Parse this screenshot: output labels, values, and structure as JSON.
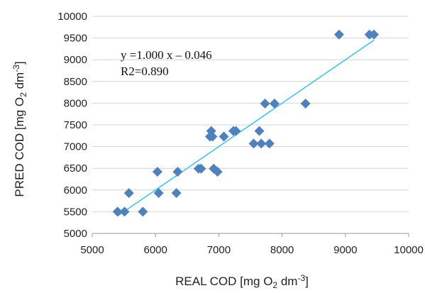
{
  "chart_data": {
    "type": "scatter",
    "xlabel": "REAL COD [mg O2 dm-3]",
    "ylabel": "PRED COD [mg O2 dm-3]",
    "xlabel_parts": {
      "main": "REAL COD [mg O",
      "sub": "2",
      "mid": " dm",
      "sup": "-3",
      "end": "]"
    },
    "ylabel_parts": {
      "main": "PRED COD [mg O",
      "sub": "2",
      "mid": " dm",
      "sup": "-3",
      "end": "]"
    },
    "xlim": [
      5000,
      10000
    ],
    "ylim": [
      5000,
      10000
    ],
    "x_ticks": [
      5000,
      6000,
      7000,
      8000,
      9000,
      10000
    ],
    "y_ticks": [
      5000,
      5500,
      6000,
      6500,
      7000,
      7500,
      8000,
      8500,
      9000,
      9500,
      10000
    ],
    "grid": "horizontal",
    "annotation": {
      "line1": "y =1.000 x – 0.046",
      "line2": "R2=0.890"
    },
    "trendline": {
      "slope": 1.0,
      "intercept": -0.046,
      "x_range": [
        5400,
        9450
      ],
      "color": "#41C5E6"
    },
    "marker_color": "#4F81BD",
    "points": [
      {
        "x": 5400,
        "y": 5500
      },
      {
        "x": 5510,
        "y": 5500
      },
      {
        "x": 5580,
        "y": 5930
      },
      {
        "x": 5800,
        "y": 5500
      },
      {
        "x": 6030,
        "y": 6420
      },
      {
        "x": 6050,
        "y": 5930
      },
      {
        "x": 6330,
        "y": 5930
      },
      {
        "x": 6350,
        "y": 6420
      },
      {
        "x": 6680,
        "y": 6490
      },
      {
        "x": 6720,
        "y": 6490
      },
      {
        "x": 6860,
        "y": 7230
      },
      {
        "x": 6880,
        "y": 7360
      },
      {
        "x": 6900,
        "y": 7230
      },
      {
        "x": 6920,
        "y": 6490
      },
      {
        "x": 6980,
        "y": 6420
      },
      {
        "x": 7080,
        "y": 7230
      },
      {
        "x": 7230,
        "y": 7360
      },
      {
        "x": 7270,
        "y": 7360
      },
      {
        "x": 7550,
        "y": 7070
      },
      {
        "x": 7640,
        "y": 7360
      },
      {
        "x": 7670,
        "y": 7070
      },
      {
        "x": 7730,
        "y": 7990
      },
      {
        "x": 7800,
        "y": 7070
      },
      {
        "x": 7880,
        "y": 7990
      },
      {
        "x": 8370,
        "y": 7990
      },
      {
        "x": 8900,
        "y": 9580
      },
      {
        "x": 9380,
        "y": 9580
      },
      {
        "x": 9450,
        "y": 9580
      }
    ]
  }
}
